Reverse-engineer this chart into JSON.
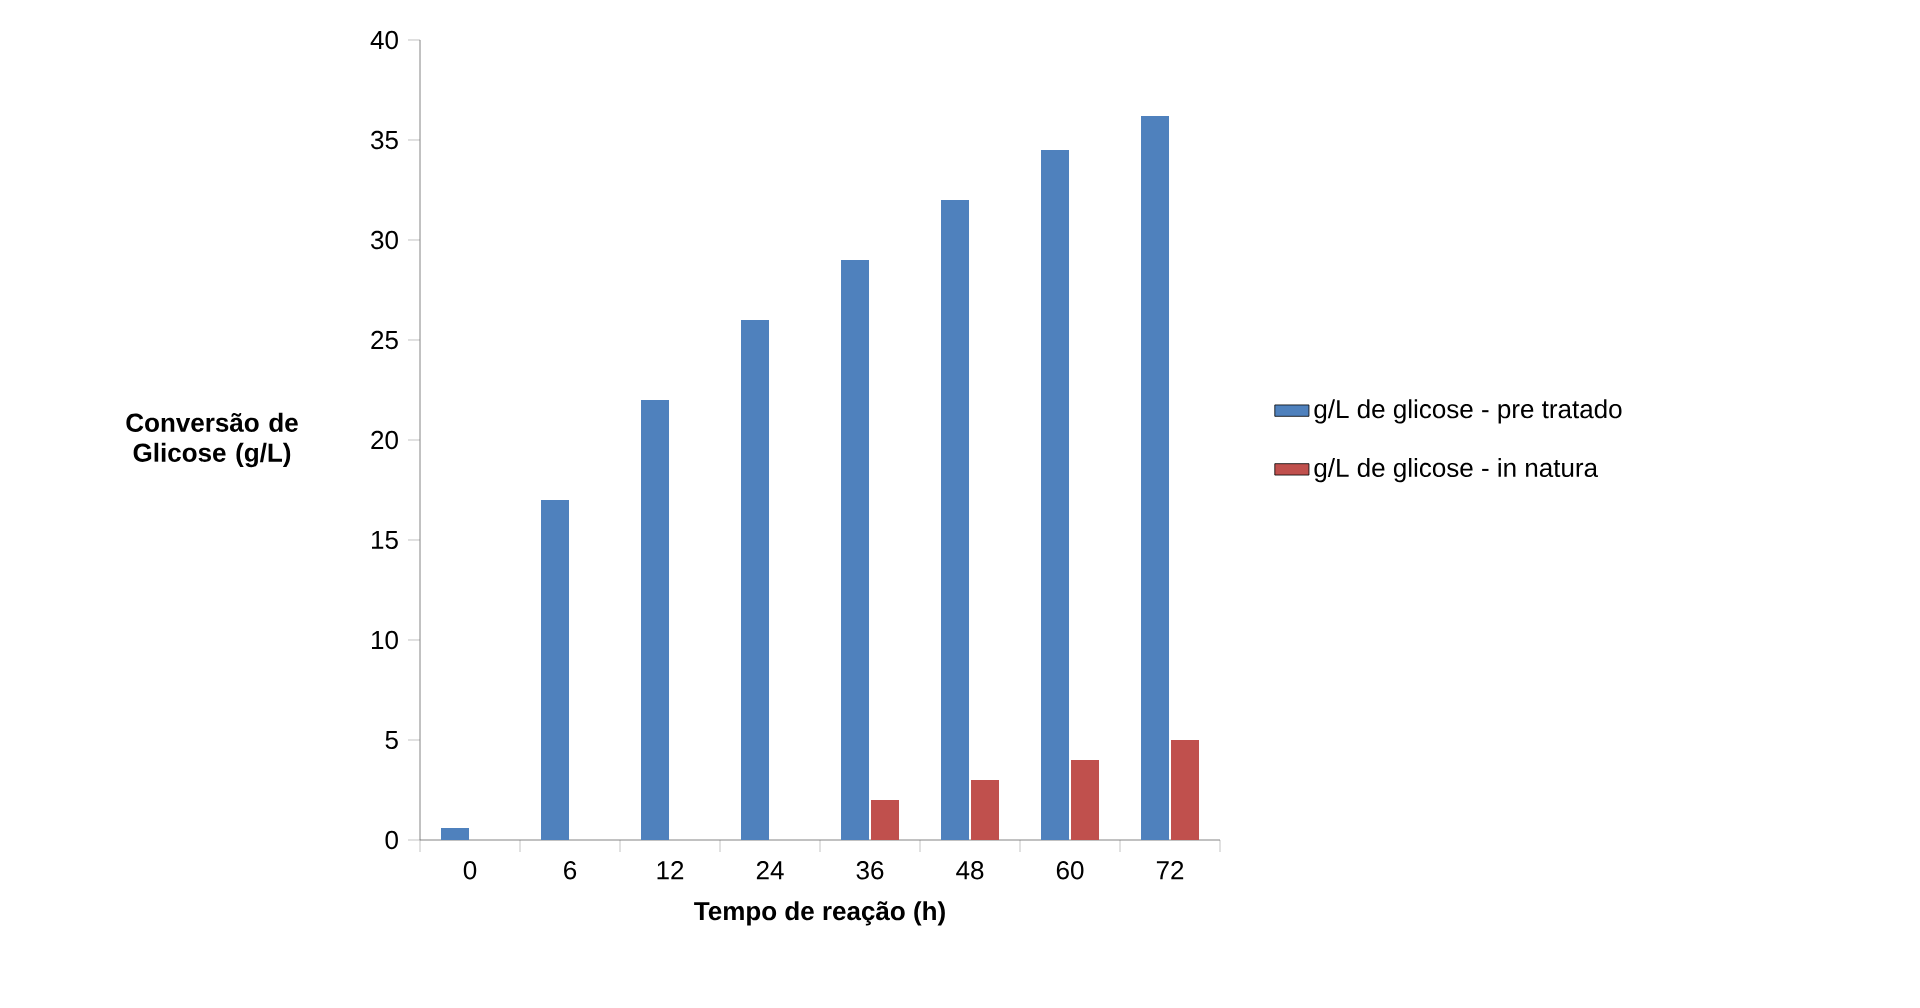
{
  "chart_data": {
    "type": "bar",
    "xlabel": "Tempo de reação (h)",
    "ylabel": "Conversão de Glicose (g/L)",
    "categories": [
      "0",
      "6",
      "12",
      "24",
      "36",
      "48",
      "60",
      "72"
    ],
    "series": [
      {
        "name": "g/L de glicose - pre tratado",
        "color": "#4f81bd",
        "values": [
          0.6,
          17,
          22,
          26,
          29,
          32,
          34.5,
          36.2
        ]
      },
      {
        "name": "g/L de glicose - in natura",
        "color": "#c0504d",
        "values": [
          0,
          0,
          0,
          0,
          2,
          3,
          4,
          5
        ]
      }
    ],
    "ylim": [
      0,
      40
    ],
    "yticks": [
      0,
      5,
      10,
      15,
      20,
      25,
      30,
      35,
      40
    ],
    "legend": "right"
  }
}
